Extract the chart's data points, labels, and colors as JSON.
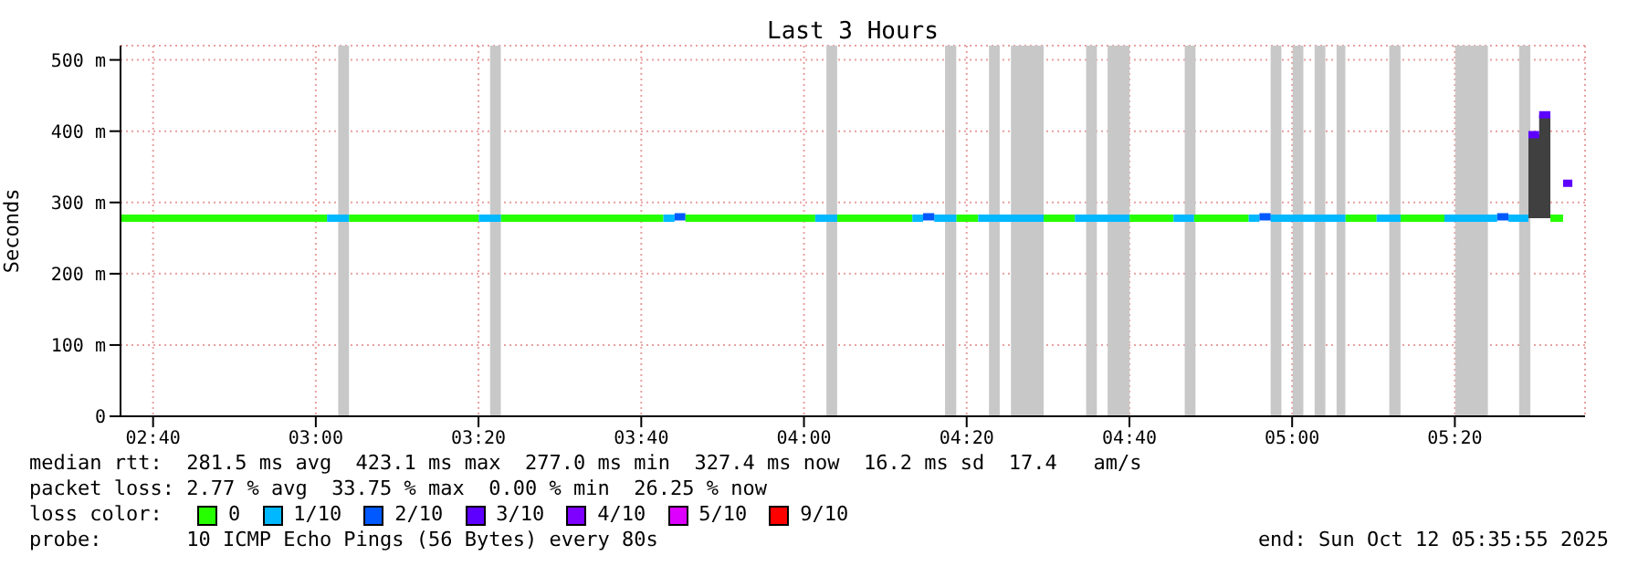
{
  "chart_data": {
    "type": "line",
    "title": "Last 3 Hours",
    "ylabel": "Seconds",
    "legend_title": "loss color:",
    "legend": "bottom",
    "grid": true,
    "marker": "none",
    "xlim": [
      2.6,
      5.6
    ],
    "xticks": [
      {
        "value": 2.6667,
        "label": "02:40"
      },
      {
        "value": 3,
        "label": "03:00"
      },
      {
        "value": 3.3333,
        "label": "03:20"
      },
      {
        "value": 3.6667,
        "label": "03:40"
      },
      {
        "value": 4,
        "label": "04:00"
      },
      {
        "value": 4.3333,
        "label": "04:20"
      },
      {
        "value": 4.6667,
        "label": "04:40"
      },
      {
        "value": 5,
        "label": "05:00"
      },
      {
        "value": 5.3333,
        "label": "05:20"
      }
    ],
    "ylim": [
      0,
      520
    ],
    "yticks": [
      0,
      {
        "value": 100,
        "label": "100 m"
      },
      {
        "value": 200,
        "label": "200 m"
      },
      {
        "value": 300,
        "label": "300 m"
      },
      {
        "value": 400,
        "label": "400 m"
      },
      {
        "value": 500,
        "label": "500 m"
      }
    ],
    "series": [
      {
        "name": "0",
        "color": "#26ff00",
        "x": [
          2.6,
          3.023,
          null,
          3.068,
          3.334,
          null,
          3.379,
          3.712,
          null,
          3.757,
          4.023,
          null,
          4.068,
          4.222,
          null,
          4.312,
          4.357,
          null,
          4.491,
          4.555,
          null,
          4.667,
          4.757,
          null,
          4.799,
          4.911,
          null,
          5.109,
          5.173,
          null,
          5.222,
          5.312,
          null,
          5.529,
          5.555
        ],
        "values": [
          278,
          278,
          null,
          278,
          278,
          null,
          278,
          278,
          null,
          278,
          278,
          null,
          278,
          278,
          null,
          278,
          278,
          null,
          278,
          278,
          null,
          278,
          278,
          null,
          278,
          278,
          null,
          278,
          278,
          null,
          278,
          278,
          null,
          278,
          278
        ]
      },
      {
        "name": "1/10",
        "color": "#00b8ff",
        "x": [
          3.023,
          3.068,
          null,
          3.334,
          3.379,
          null,
          3.712,
          3.735,
          null,
          4.023,
          4.068,
          null,
          4.222,
          4.244,
          null,
          4.267,
          4.312,
          null,
          4.357,
          4.491,
          null,
          4.555,
          4.667,
          null,
          4.757,
          4.799,
          null,
          4.911,
          4.933,
          null,
          4.956,
          5.109,
          null,
          5.173,
          5.222,
          null,
          5.312,
          5.42,
          null,
          5.443,
          5.484
        ],
        "values": [
          278,
          278,
          null,
          278,
          278,
          null,
          278,
          278,
          null,
          278,
          278,
          null,
          278,
          278,
          null,
          278,
          278,
          null,
          278,
          278,
          null,
          278,
          278,
          null,
          278,
          278,
          null,
          278,
          278,
          null,
          278,
          278,
          null,
          278,
          278,
          null,
          278,
          278,
          null,
          278,
          278
        ]
      },
      {
        "name": "2/10",
        "color": "#0059ff",
        "x": [
          3.735,
          3.757,
          null,
          4.244,
          4.267,
          null,
          4.933,
          4.956,
          null,
          5.42,
          5.443
        ],
        "values": [
          280,
          280,
          null,
          280,
          280,
          null,
          280,
          280,
          null,
          280,
          280
        ]
      },
      {
        "name": "3/10",
        "color": "#5e00ff",
        "x": [
          5.484,
          5.506,
          null,
          5.506,
          5.529,
          null,
          5.555,
          5.574
        ],
        "values": [
          395,
          395,
          null,
          423,
          423,
          null,
          327,
          327
        ],
        "lower": [
          278,
          278,
          null,
          278,
          278,
          null,
          null,
          null
        ],
        "upper": [
          395,
          395,
          null,
          423,
          423,
          null,
          null,
          null
        ]
      },
      {
        "name": "4/10",
        "color": "#7e00ff"
      },
      {
        "name": "5/10",
        "color": "#dd00ff"
      },
      {
        "name": "9/10",
        "color": "#ff0000"
      }
    ],
    "bands": [
      {
        "axis": "x",
        "from": 3.046,
        "to": 3.068,
        "color": "#c8c8c8"
      },
      {
        "axis": "x",
        "from": 3.357,
        "to": 3.379,
        "color": "#c8c8c8"
      },
      {
        "axis": "x",
        "from": 4.046,
        "to": 4.068,
        "color": "#c8c8c8"
      },
      {
        "axis": "x",
        "from": 4.289,
        "to": 4.312,
        "color": "#c8c8c8"
      },
      {
        "axis": "x",
        "from": 4.379,
        "to": 4.401,
        "color": "#c8c8c8"
      },
      {
        "axis": "x",
        "from": 4.424,
        "to": 4.491,
        "color": "#c8c8c8"
      },
      {
        "axis": "x",
        "from": 4.578,
        "to": 4.6,
        "color": "#c8c8c8"
      },
      {
        "axis": "x",
        "from": 4.622,
        "to": 4.667,
        "color": "#c8c8c8"
      },
      {
        "axis": "x",
        "from": 4.78,
        "to": 4.802,
        "color": "#c8c8c8"
      },
      {
        "axis": "x",
        "from": 4.956,
        "to": 4.978,
        "color": "#c8c8c8"
      },
      {
        "axis": "x",
        "from": 5.001,
        "to": 5.023,
        "color": "#c8c8c8"
      },
      {
        "axis": "x",
        "from": 5.046,
        "to": 5.068,
        "color": "#c8c8c8"
      },
      {
        "axis": "x",
        "from": 5.091,
        "to": 5.109,
        "color": "#c8c8c8"
      },
      {
        "axis": "x",
        "from": 5.199,
        "to": 5.222,
        "color": "#c8c8c8"
      },
      {
        "axis": "x",
        "from": 5.334,
        "to": 5.401,
        "color": "#c8c8c8"
      },
      {
        "axis": "x",
        "from": 5.465,
        "to": 5.488,
        "color": "#c8c8c8"
      }
    ],
    "annotations": [
      "median rtt:  281.5 ms avg  423.1 ms max  277.0 ms min  327.4 ms now  16.2 ms sd  17.4   am/s",
      "packet loss: 2.77 % avg  33.75 % max  0.00 % min  26.25 % now",
      "probe:       10 ICMP Echo Pings (56 Bytes) every 80s",
      "end: Sun Oct 12 05:35:55 2025"
    ]
  }
}
